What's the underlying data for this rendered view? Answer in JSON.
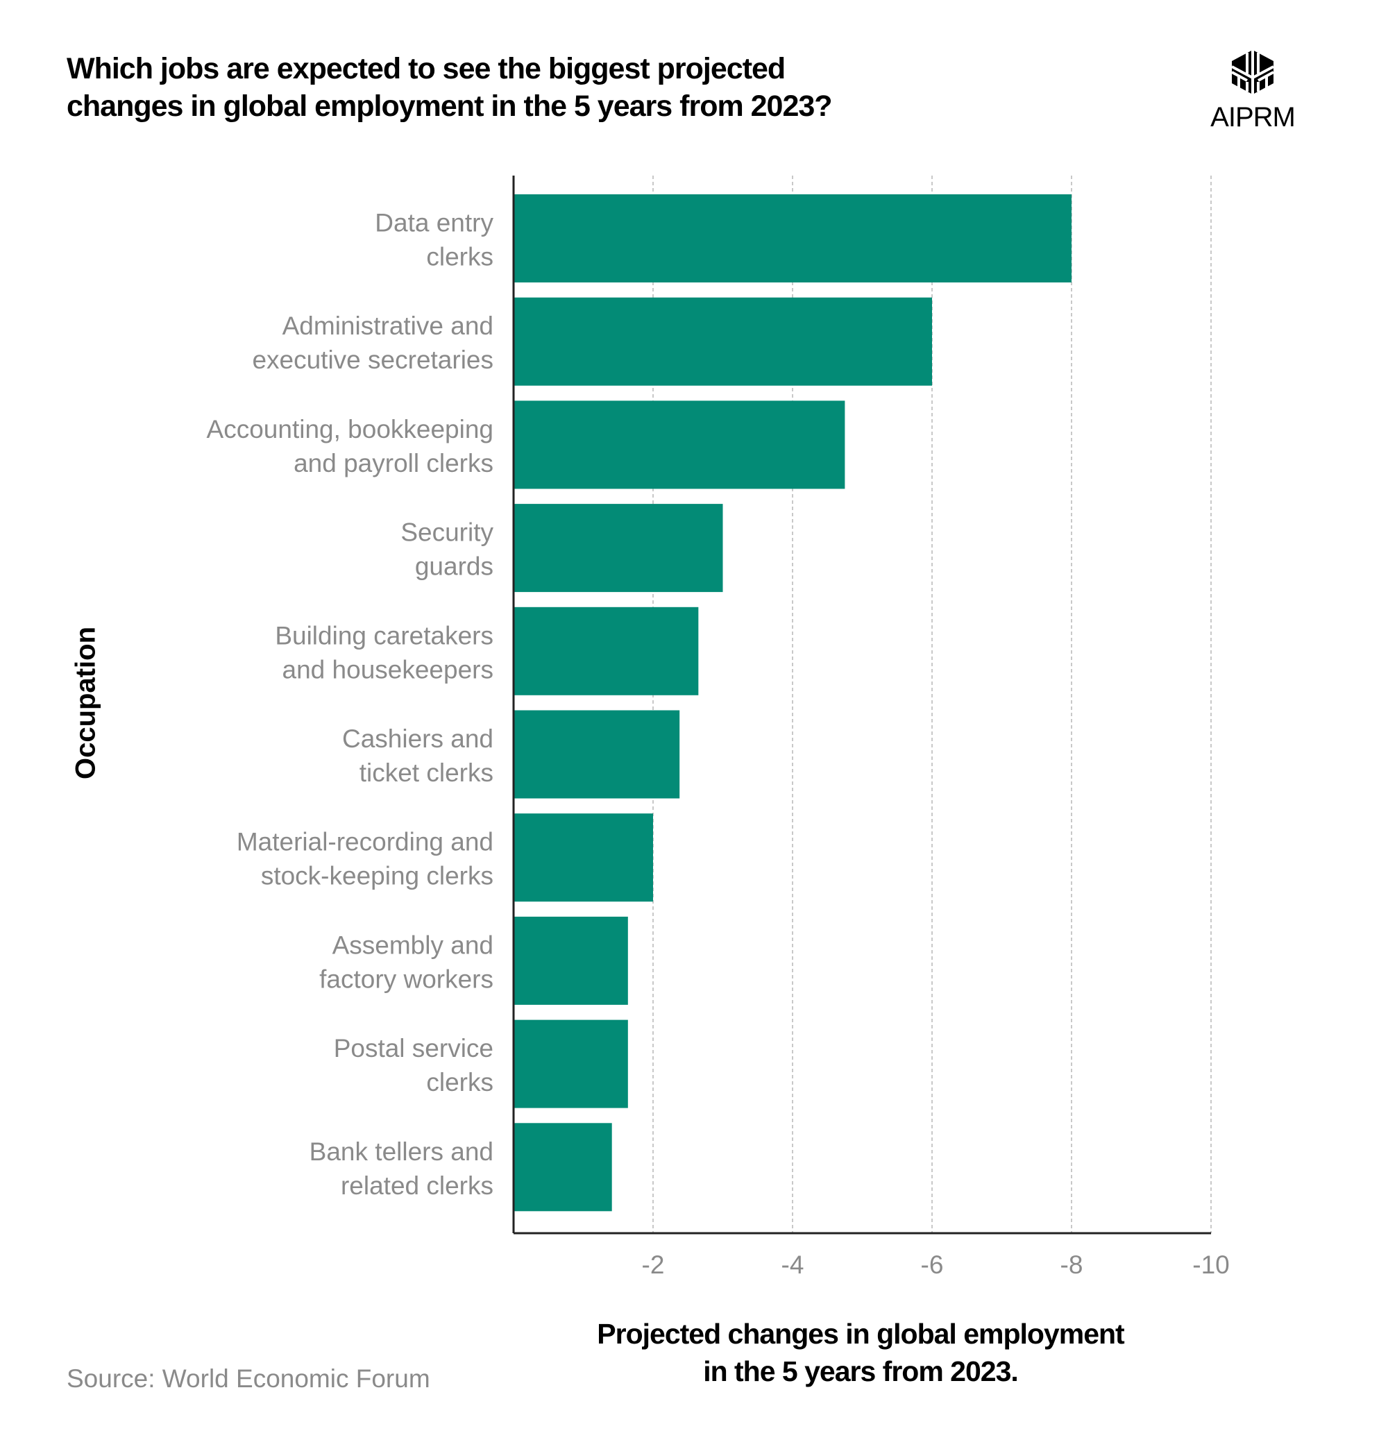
{
  "chart_data": {
    "type": "bar",
    "orientation": "horizontal",
    "title": "Which jobs are expected to see the biggest projected changes in global employment in the 5 years from 2023?",
    "xlabel": "Projected changes in global employment in the 5 years from 2023.",
    "ylabel": "Occupation",
    "categories": [
      "Data entry clerks",
      "Administrative and executive secretaries",
      "Accounting, bookkeeping and payroll clerks",
      "Security guards",
      "Building caretakers and housekeepers",
      "Cashiers and ticket clerks",
      "Material-recording and stock-keeping clerks",
      "Assembly and factory workers",
      "Postal service clerks",
      "Bank tellers and related clerks"
    ],
    "category_lines": [
      [
        "Data entry",
        "clerks"
      ],
      [
        "Administrative and",
        "executive secretaries"
      ],
      [
        "Accounting, bookkeeping",
        "and payroll clerks"
      ],
      [
        "Security",
        "guards"
      ],
      [
        "Building caretakers",
        "and housekeepers"
      ],
      [
        "Cashiers and",
        "ticket clerks"
      ],
      [
        "Material-recording and",
        "stock-keeping clerks"
      ],
      [
        "Assembly and",
        "factory workers"
      ],
      [
        "Postal service",
        "clerks"
      ],
      [
        "Bank tellers and",
        "related clerks"
      ]
    ],
    "values": [
      -8,
      -6,
      -4.75,
      -3.0,
      -2.65,
      -2.38,
      -2.0,
      -1.64,
      -1.64,
      -1.41
    ],
    "xlim": [
      0,
      -10
    ],
    "xticks": [
      "-2",
      "-4",
      "-6",
      "-8",
      "-10"
    ],
    "xtick_values": [
      -2,
      -4,
      -6,
      -8,
      -10
    ],
    "grid": "vertical dashed",
    "bar_color": "#038b76"
  },
  "title_lines": [
    "Which jobs are expected to see the biggest projected",
    "changes in global employment in the 5 years from 2023?"
  ],
  "xlabel_lines": [
    "Projected changes in global employment",
    "in the 5 years from 2023."
  ],
  "source": "Source:  World Economic Forum",
  "logo": {
    "text": "AIPRM",
    "icon": "aiprm-cube-logo"
  }
}
